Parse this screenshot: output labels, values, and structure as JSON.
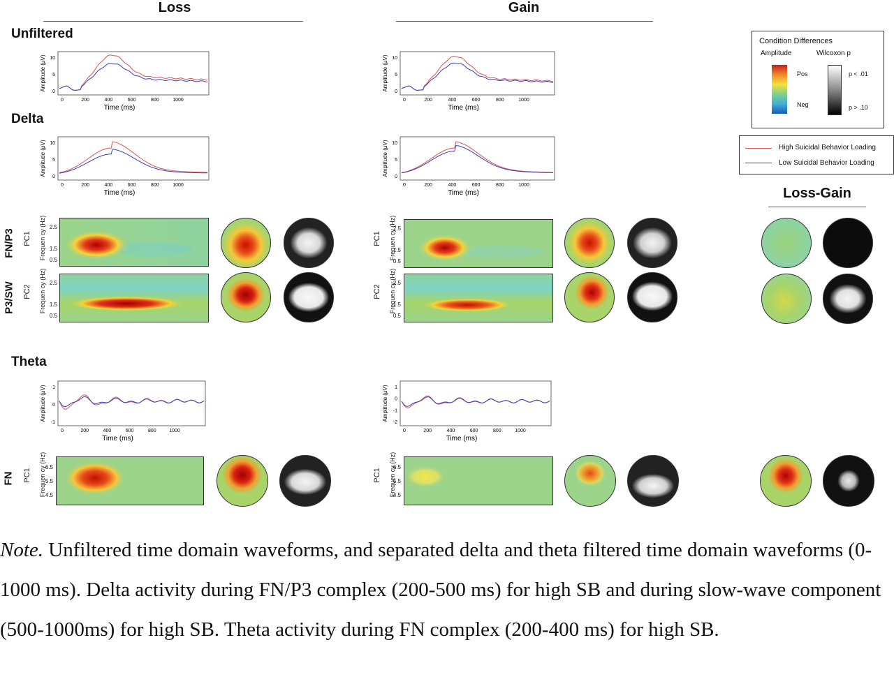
{
  "columns": {
    "loss": "Loss",
    "gain": "Gain",
    "loss_gain": "Loss-Gain"
  },
  "rows": {
    "unfiltered": "Unfiltered",
    "delta": "Delta",
    "theta": "Theta"
  },
  "component_labels": {
    "fnp3": "FN/P3",
    "p3sw": "P3/SW",
    "fn": "FN",
    "pc1": "PC1",
    "pc2": "PC2"
  },
  "axis": {
    "amplitude": "Amplitude (μV)",
    "time": "Time (ms)",
    "frequency": "Frequen cy (Hz)",
    "time_ticks": [
      "0",
      "200",
      "400",
      "600",
      "800",
      "1000"
    ],
    "delta_amp_ticks": [
      "0",
      "5",
      "10"
    ],
    "theta_amp_ticks_loss": [
      "-1",
      "0",
      "1"
    ],
    "theta_amp_ticks_gain": [
      "-2",
      "-1",
      "0",
      "1"
    ],
    "delta_freq_ticks": [
      "2.5",
      "1.5",
      "0.5"
    ],
    "theta_freq_ticks": [
      "6.5",
      "5.5",
      "4.5"
    ]
  },
  "legend_condition": {
    "title": "Condition Differences",
    "amplitude_label": "Amplitude",
    "wilcoxon_label": "Wilcoxon p",
    "pos": "Pos",
    "neg": "Neg",
    "p_low": "p < .01",
    "p_high": "p > .10"
  },
  "legend_lines": {
    "high": "High Suicidal Behavior Loading",
    "low": "Low Suicidal Behavior Loading",
    "high_color": "#d9534f",
    "low_color": "#3b3bbf"
  },
  "note": {
    "lead": "Note.",
    "text": " Unfiltered time domain waveforms, and separated delta and theta filtered time domain waveforms (0-1000 ms). Delta activity during FN/P3 complex (200-500 ms) for high SB and during slow-wave component (500-1000ms) for high SB. Theta activity during FN complex (200-400 ms) for high SB."
  }
}
